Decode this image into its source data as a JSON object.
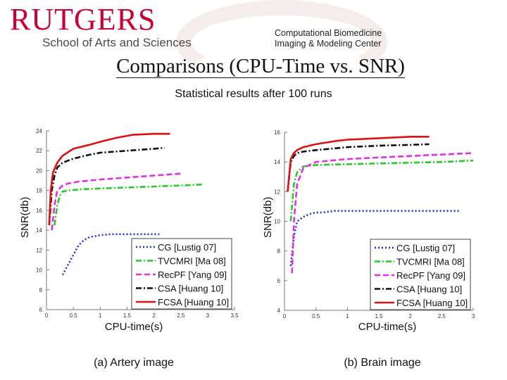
{
  "header": {
    "logo_text": "RUTGERS",
    "school": "School of Arts and Sciences",
    "center_line1": "Computational Biomedicine",
    "center_line2": "Imaging & Modeling Center"
  },
  "slide": {
    "title": "Comparisons (CPU-Time vs. SNR)",
    "subtitle": "Statistical results after 100 runs"
  },
  "chart_data": [
    {
      "type": "line",
      "caption": "(a) Artery image",
      "xlabel": "CPU-time(s)",
      "ylabel": "SNR(db)",
      "xlim": [
        0,
        3.5
      ],
      "ylim": [
        6,
        24
      ],
      "xticks": [
        "0",
        "0.5",
        "1",
        "1.5",
        "2",
        "2.5",
        "3",
        "3.5"
      ],
      "yticks": [
        "6",
        "8",
        "10",
        "12",
        "14",
        "16",
        "18",
        "20",
        "22",
        "24"
      ],
      "legend_position": "bottom-right",
      "series": [
        {
          "name": "CG [Lustig 07]",
          "color": "#1f2fd0",
          "dash": "2,3",
          "x": [
            0.3,
            0.4,
            0.5,
            0.6,
            0.7,
            0.8,
            1.0,
            1.2,
            1.5,
            1.8,
            2.1
          ],
          "y": [
            9.5,
            10.5,
            11.5,
            12.5,
            13.0,
            13.3,
            13.5,
            13.6,
            13.6,
            13.6,
            13.6
          ]
        },
        {
          "name": "TVCMRI [Ma 08]",
          "color": "#22cc22",
          "dash": "8,3,2,3",
          "x": [
            0.15,
            0.2,
            0.25,
            0.3,
            0.4,
            0.6,
            1.0,
            1.5,
            2.0,
            2.5,
            2.9
          ],
          "y": [
            14.5,
            16.5,
            17.5,
            17.9,
            18.0,
            18.1,
            18.2,
            18.3,
            18.4,
            18.5,
            18.6
          ]
        },
        {
          "name": "RecPF [Yang 09]",
          "color": "#e030e0",
          "dash": "8,4",
          "x": [
            0.1,
            0.15,
            0.2,
            0.3,
            0.4,
            0.6,
            1.0,
            1.5,
            2.0,
            2.5
          ],
          "y": [
            14.0,
            16.5,
            18.0,
            18.5,
            18.7,
            18.9,
            19.1,
            19.3,
            19.5,
            19.7
          ]
        },
        {
          "name": "CSA [Huang 10]",
          "color": "#111111",
          "dash": "8,3,2,3",
          "x": [
            0.05,
            0.1,
            0.15,
            0.2,
            0.3,
            0.5,
            0.8,
            1.0,
            1.5,
            2.0,
            2.2
          ],
          "y": [
            14.5,
            18.0,
            19.5,
            20.3,
            20.8,
            21.2,
            21.6,
            21.8,
            22.0,
            22.2,
            22.3
          ]
        },
        {
          "name": "FCSA [Huang 10]",
          "color": "#dd1111",
          "dash": "",
          "x": [
            0.05,
            0.08,
            0.12,
            0.2,
            0.3,
            0.5,
            0.8,
            1.0,
            1.3,
            1.6,
            2.0,
            2.3
          ],
          "y": [
            14.5,
            18.0,
            19.8,
            20.8,
            21.5,
            22.2,
            22.6,
            22.9,
            23.3,
            23.6,
            23.7,
            23.7
          ]
        }
      ]
    },
    {
      "type": "line",
      "caption": "(b) Brain image",
      "xlabel": "CPU-time(s)",
      "ylabel": "SNR(db)",
      "xlim": [
        0,
        3
      ],
      "ylim": [
        4,
        16
      ],
      "xticks": [
        "0",
        "0.5",
        "1",
        "1.5",
        "2",
        "2.5",
        "3"
      ],
      "yticks": [
        "4",
        "6",
        "8",
        "10",
        "12",
        "14",
        "16"
      ],
      "legend_position": "bottom-right",
      "series": [
        {
          "name": "CG [Lustig 07]",
          "color": "#1f2fd0",
          "dash": "2,3",
          "x": [
            0.1,
            0.15,
            0.2,
            0.3,
            0.4,
            0.5,
            0.6,
            0.8,
            1.0,
            1.5,
            2.0,
            2.5,
            2.8
          ],
          "y": [
            7.0,
            9.0,
            10.0,
            10.3,
            10.5,
            10.6,
            10.6,
            10.7,
            10.7,
            10.7,
            10.7,
            10.7,
            10.7
          ]
        },
        {
          "name": "TVCMRI [Ma 08]",
          "color": "#22cc22",
          "dash": "8,3,2,3",
          "x": [
            0.1,
            0.15,
            0.2,
            0.3,
            0.5,
            1.0,
            1.5,
            2.0,
            2.5,
            3.0
          ],
          "y": [
            10.0,
            12.5,
            13.3,
            13.7,
            13.8,
            13.85,
            13.9,
            13.95,
            14.0,
            14.1
          ]
        },
        {
          "name": "RecPF [Yang 09]",
          "color": "#e030e0",
          "dash": "8,4",
          "x": [
            0.12,
            0.15,
            0.2,
            0.3,
            0.5,
            1.0,
            1.5,
            2.0,
            2.5,
            3.0
          ],
          "y": [
            6.5,
            10.0,
            12.5,
            13.6,
            14.0,
            14.2,
            14.3,
            14.4,
            14.5,
            14.6
          ]
        },
        {
          "name": "CSA [Huang 10]",
          "color": "#111111",
          "dash": "8,3,2,3",
          "x": [
            0.05,
            0.1,
            0.15,
            0.2,
            0.3,
            0.5,
            1.0,
            1.5,
            2.0,
            2.3
          ],
          "y": [
            12.0,
            14.0,
            14.4,
            14.6,
            14.7,
            14.8,
            15.0,
            15.1,
            15.15,
            15.2
          ]
        },
        {
          "name": "FCSA [Huang 10]",
          "color": "#dd1111",
          "dash": "",
          "x": [
            0.05,
            0.1,
            0.15,
            0.2,
            0.3,
            0.5,
            0.8,
            1.0,
            1.5,
            2.0,
            2.3
          ],
          "y": [
            12.0,
            14.2,
            14.6,
            14.8,
            15.0,
            15.2,
            15.4,
            15.5,
            15.6,
            15.7,
            15.7
          ]
        }
      ]
    }
  ]
}
